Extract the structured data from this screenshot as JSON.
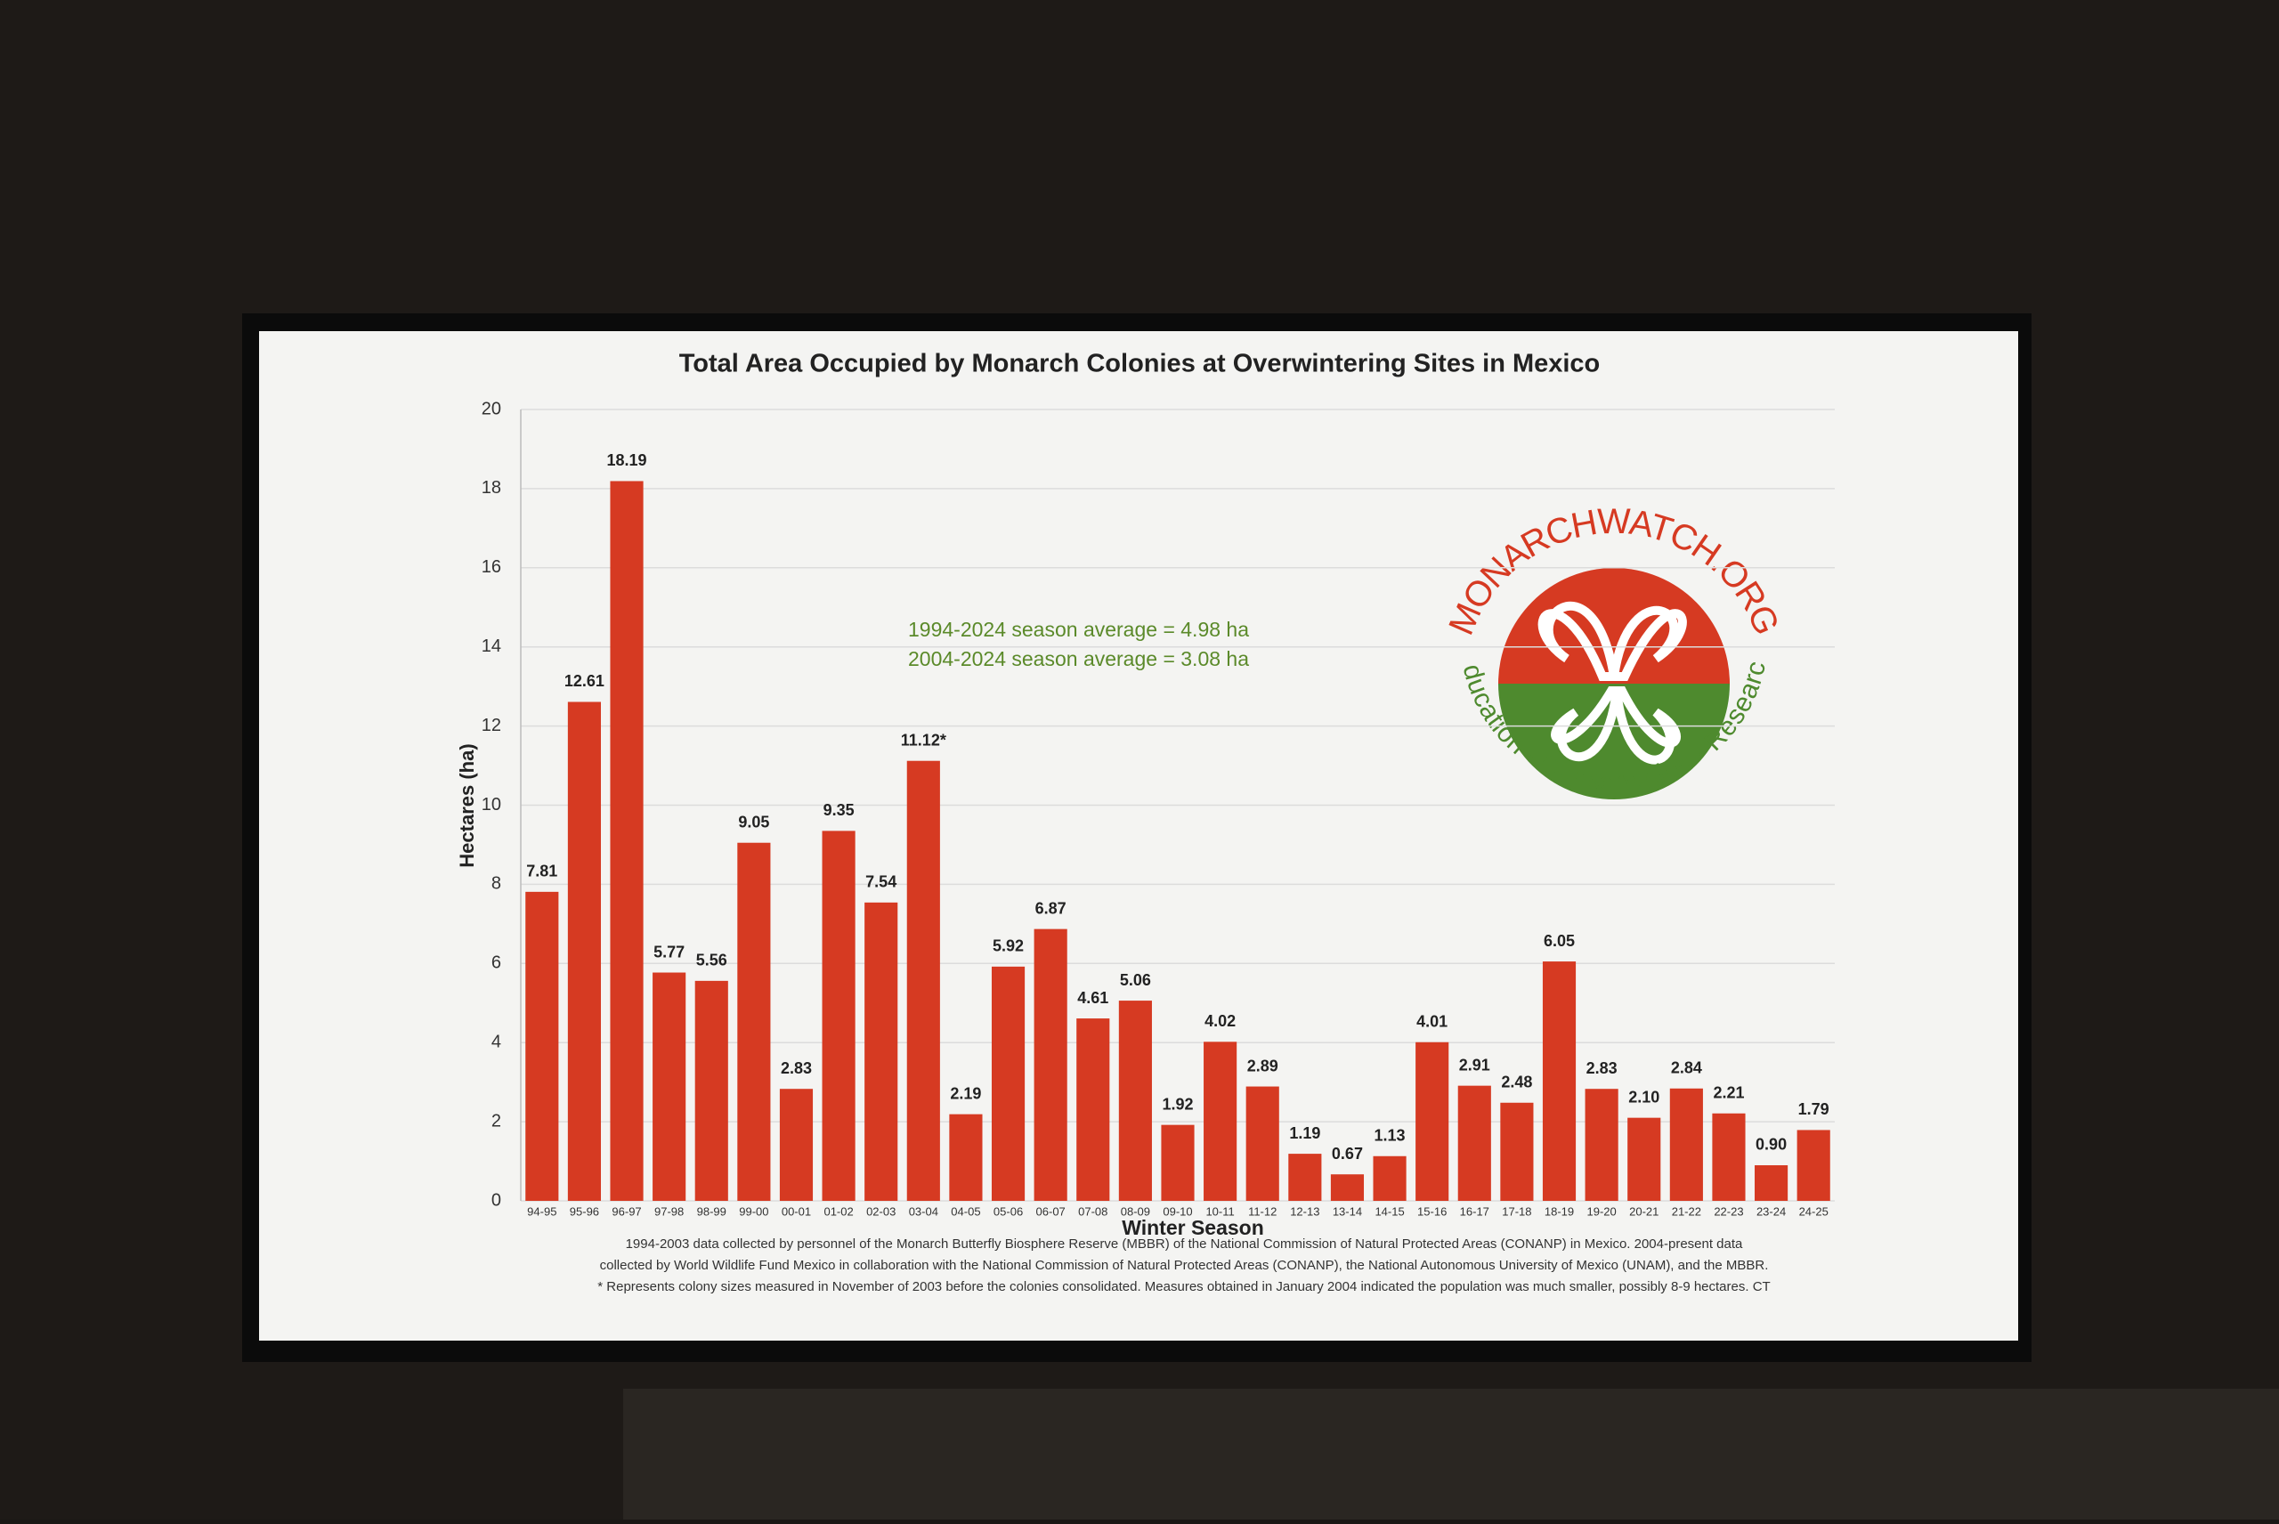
{
  "chart_data": {
    "type": "bar",
    "title": "Total Area Occupied by Monarch Colonies at Overwintering Sites in Mexico",
    "x_label": "Winter Season",
    "y_label": "Hectares (ha)",
    "categories": [
      "94-95",
      "95-96",
      "96-97",
      "97-98",
      "98-99",
      "99-00",
      "00-01",
      "01-02",
      "02-03",
      "03-04",
      "04-05",
      "05-06",
      "06-07",
      "07-08",
      "08-09",
      "09-10",
      "10-11",
      "11-12",
      "12-13",
      "13-14",
      "14-15",
      "15-16",
      "16-17",
      "17-18",
      "18-19",
      "19-20",
      "20-21",
      "21-22",
      "22-23",
      "23-24",
      "24-25"
    ],
    "values": [
      7.81,
      12.61,
      18.19,
      5.77,
      5.56,
      9.05,
      2.83,
      9.35,
      7.54,
      11.12,
      2.19,
      5.92,
      6.87,
      4.61,
      5.06,
      1.92,
      4.02,
      2.89,
      1.19,
      0.67,
      1.13,
      4.01,
      2.91,
      2.48,
      6.05,
      2.83,
      2.1,
      2.84,
      2.21,
      0.9,
      1.79
    ],
    "value_labels": [
      "7.81",
      "12.61",
      "18.19",
      "5.77",
      "5.56",
      "9.05",
      "2.83",
      "9.35",
      "7.54",
      "11.12*",
      "2.19",
      "5.92",
      "6.87",
      "4.61",
      "5.06",
      "1.92",
      "4.02",
      "2.89",
      "1.19",
      "0.67",
      "1.13",
      "4.01",
      "2.91",
      "2.48",
      "6.05",
      "2.83",
      "2.10",
      "2.84",
      "2.21",
      "0.90",
      "1.79"
    ],
    "color": "#d63a22",
    "ylim": [
      0,
      20
    ],
    "yticks": [
      0,
      2,
      4,
      6,
      8,
      10,
      12,
      14,
      16,
      18,
      20
    ],
    "grid": true,
    "annotations": [
      "1994-2024 season average = 4.98 ha",
      "2004-2024 season average = 3.08 ha"
    ],
    "notes": [
      "1994-2003 data collected by personnel of the Monarch Butterfly Biosphere Reserve (MBBR) of the National Commission of Natural Protected Areas (CONANP) in Mexico. 2004-present data",
      "collected by World Wildlife Fund Mexico in collaboration with the National Commission of Natural Protected Areas (CONANP), the National Autonomous University of Mexico (UNAM), and the MBBR.",
      "* Represents colony sizes measured in November of 2003 before the colonies consolidated. Measures obtained in January 2004 indicated the population was much smaller, possibly 8-9 hectares. CT"
    ]
  },
  "logo": {
    "name": "MONARCHWATCH.ORG",
    "tagline": "Education · Conservation · Research"
  }
}
